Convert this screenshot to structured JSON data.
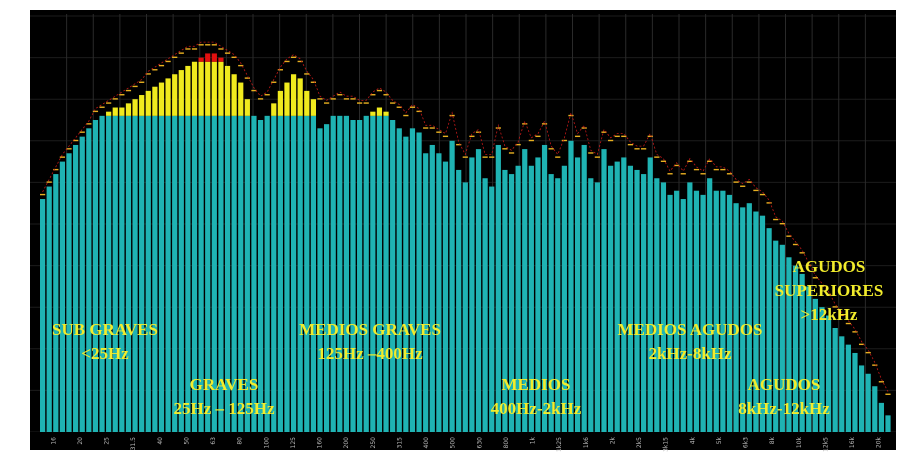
{
  "colors": {
    "background": "#000000",
    "bar_base": "#1fb3b3",
    "bar_mid": "#f0ea1e",
    "bar_hot": "#e01010",
    "peak_marker": "#e8b020",
    "peak_line": "#c01818",
    "label": "#f2ec2c"
  },
  "chart_data": {
    "type": "bar",
    "title": "",
    "xlabel": "",
    "ylabel": "",
    "ylim": [
      0,
      100
    ],
    "thresholds": {
      "yellow_from": 76,
      "red_from": 89
    },
    "grid": true,
    "x_ticks": [
      "16",
      "20",
      "25",
      "31.5",
      "40",
      "50",
      "63",
      "80",
      "100",
      "125",
      "160",
      "200",
      "250",
      "315",
      "400",
      "500",
      "630",
      "800",
      "1k",
      "1k25",
      "1k6",
      "2k",
      "2k5",
      "3k15",
      "4k",
      "5k",
      "6k3",
      "8k",
      "10k",
      "12k5",
      "16k",
      "20k"
    ],
    "values": [
      56,
      59,
      62,
      65,
      67,
      69,
      71,
      73,
      75,
      76,
      77,
      78,
      78,
      79,
      80,
      81,
      82,
      83,
      84,
      85,
      86,
      87,
      88,
      89,
      90,
      91,
      91,
      90,
      88,
      86,
      84,
      80,
      76,
      75,
      76,
      79,
      82,
      84,
      86,
      85,
      82,
      80,
      73,
      74,
      76,
      76,
      76,
      75,
      75,
      76,
      77,
      78,
      77,
      75,
      73,
      71,
      73,
      72,
      67,
      69,
      67,
      65,
      70,
      63,
      60,
      66,
      68,
      61,
      59,
      69,
      63,
      62,
      64,
      68,
      64,
      66,
      69,
      62,
      61,
      64,
      70,
      66,
      69,
      61,
      60,
      68,
      64,
      65,
      66,
      64,
      63,
      62,
      66,
      61,
      60,
      57,
      58,
      56,
      60,
      58,
      57,
      61,
      58,
      58,
      57,
      55,
      54,
      55,
      53,
      52,
      49,
      46,
      45,
      42,
      40,
      38,
      35,
      32,
      30,
      28,
      25,
      23,
      21,
      19,
      16,
      14,
      11,
      7,
      4
    ],
    "peaks": [
      57,
      60,
      63,
      66,
      68,
      70,
      72,
      74,
      77,
      78,
      79,
      80,
      81,
      82,
      83,
      84,
      86,
      87,
      88,
      89,
      90,
      91,
      92,
      92,
      93,
      93,
      93,
      92,
      91,
      90,
      88,
      85,
      82,
      80,
      81,
      84,
      87,
      89,
      90,
      89,
      86,
      84,
      80,
      79,
      80,
      81,
      80,
      80,
      79,
      79,
      81,
      82,
      81,
      79,
      78,
      76,
      78,
      77,
      73,
      73,
      72,
      71,
      76,
      69,
      66,
      71,
      72,
      66,
      66,
      73,
      68,
      67,
      69,
      74,
      70,
      71,
      74,
      68,
      66,
      70,
      76,
      71,
      73,
      67,
      66,
      72,
      70,
      71,
      71,
      69,
      68,
      68,
      71,
      66,
      65,
      62,
      64,
      62,
      65,
      63,
      62,
      65,
      63,
      63,
      62,
      60,
      59,
      60,
      58,
      57,
      55,
      51,
      50,
      47,
      45,
      43,
      40,
      37,
      35,
      33,
      30,
      28,
      26,
      24,
      21,
      19,
      16,
      12,
      9
    ],
    "annotations": [
      {
        "id": "sub-graves",
        "lines": [
          "SUB GRAVES",
          "<25Hz"
        ]
      },
      {
        "id": "graves",
        "lines": [
          "GRAVES",
          "25Hz – 125Hz"
        ]
      },
      {
        "id": "medios-graves",
        "lines": [
          "MEDIOS GRAVES",
          "125Hz –400Hz"
        ]
      },
      {
        "id": "medios",
        "lines": [
          "MEDIOS",
          "400Hz-2kHz"
        ]
      },
      {
        "id": "medios-agudos",
        "lines": [
          "MEDIOS AGUDOS",
          "2kHz-8kHz"
        ]
      },
      {
        "id": "agudos",
        "lines": [
          "AGUDOS",
          "8kHz-12kHz"
        ]
      },
      {
        "id": "agudos-superiores",
        "lines": [
          "AGUDOS",
          "SUPERIORES",
          ">12kHz"
        ]
      }
    ]
  }
}
